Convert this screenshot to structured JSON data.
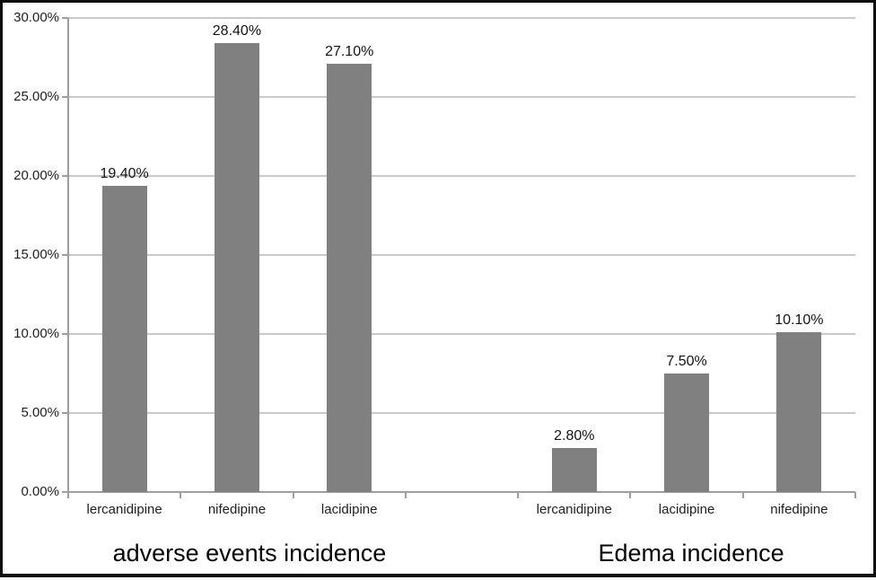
{
  "chart_data": {
    "type": "bar",
    "bar_color": "#808080",
    "grid": true,
    "ylim": [
      0,
      30
    ],
    "yticks": [
      "0.00%",
      "5.00%",
      "10.00%",
      "15.00%",
      "20.00%",
      "25.00%",
      "30.00%"
    ],
    "ytick_values": [
      0,
      5,
      10,
      15,
      20,
      25,
      30
    ],
    "groups": [
      {
        "label": "adverse events incidence",
        "categories": [
          "lercanidipine",
          "nifedipine",
          "lacidipine"
        ],
        "values": [
          19.4,
          28.4,
          27.1
        ],
        "value_labels": [
          "19.40%",
          "28.40%",
          "27.10%"
        ]
      },
      {
        "label": "Edema incidence",
        "categories": [
          "lercanidipine",
          "lacidipine",
          "nifedipine"
        ],
        "values": [
          2.8,
          7.5,
          10.1
        ],
        "value_labels": [
          "2.80%",
          "7.50%",
          "10.10%"
        ]
      }
    ]
  }
}
